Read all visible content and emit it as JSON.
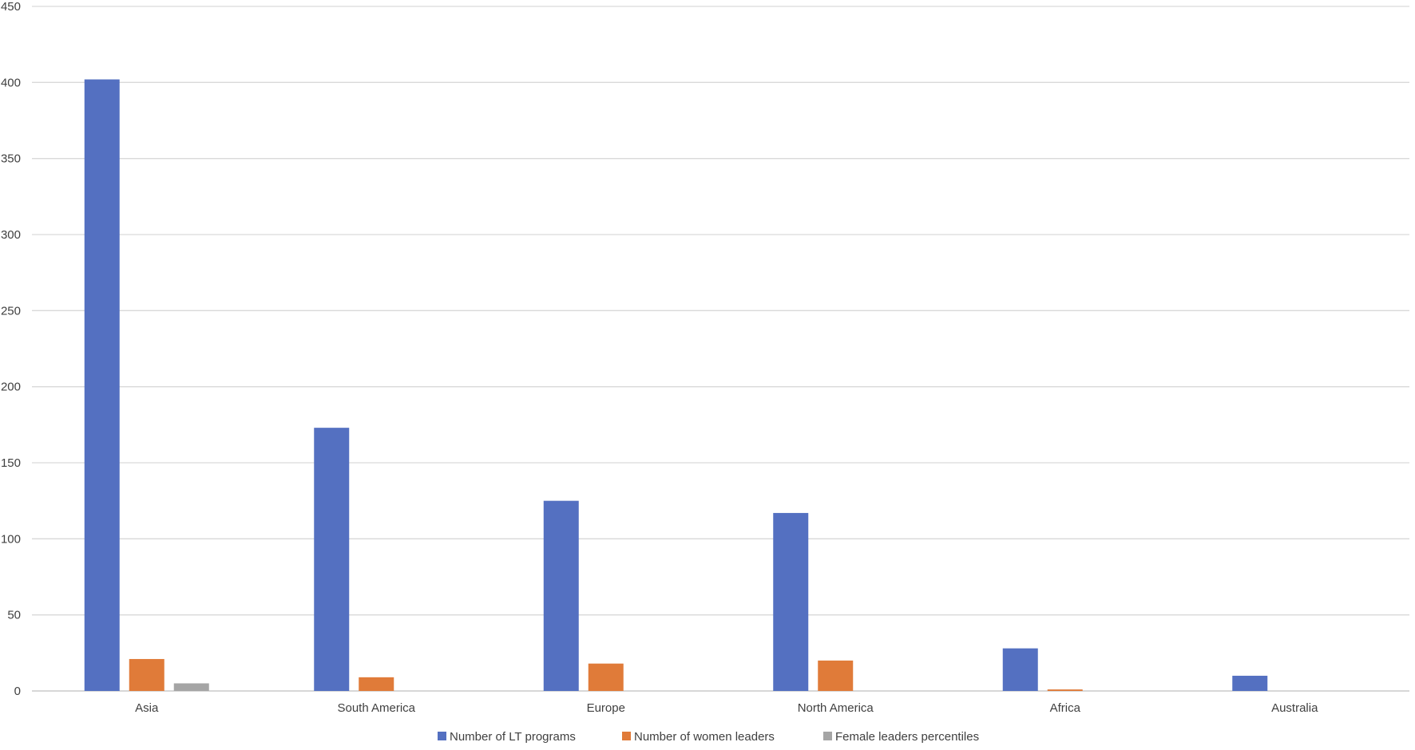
{
  "chart_data": {
    "type": "bar",
    "categories": [
      "Asia",
      "South America",
      "Europe",
      "North America",
      "Africa",
      "Australia"
    ],
    "series": [
      {
        "name": "Number of LT programs",
        "color": "#5470C1",
        "values": [
          402,
          173,
          125,
          117,
          28,
          10
        ]
      },
      {
        "name": "Number of women leaders",
        "color": "#E07B39",
        "values": [
          21,
          9,
          18,
          20,
          1,
          0
        ]
      },
      {
        "name": "Female leaders percentiles",
        "color": "#A5A5A5",
        "values": [
          5,
          0,
          0,
          0,
          0,
          0
        ]
      }
    ],
    "ylim": [
      0,
      450
    ],
    "yticks": [
      0,
      50,
      100,
      150,
      200,
      250,
      300,
      350,
      400,
      450
    ],
    "grid": true,
    "legend_position": "bottom-center",
    "title": "",
    "xlabel": "",
    "ylabel": ""
  }
}
